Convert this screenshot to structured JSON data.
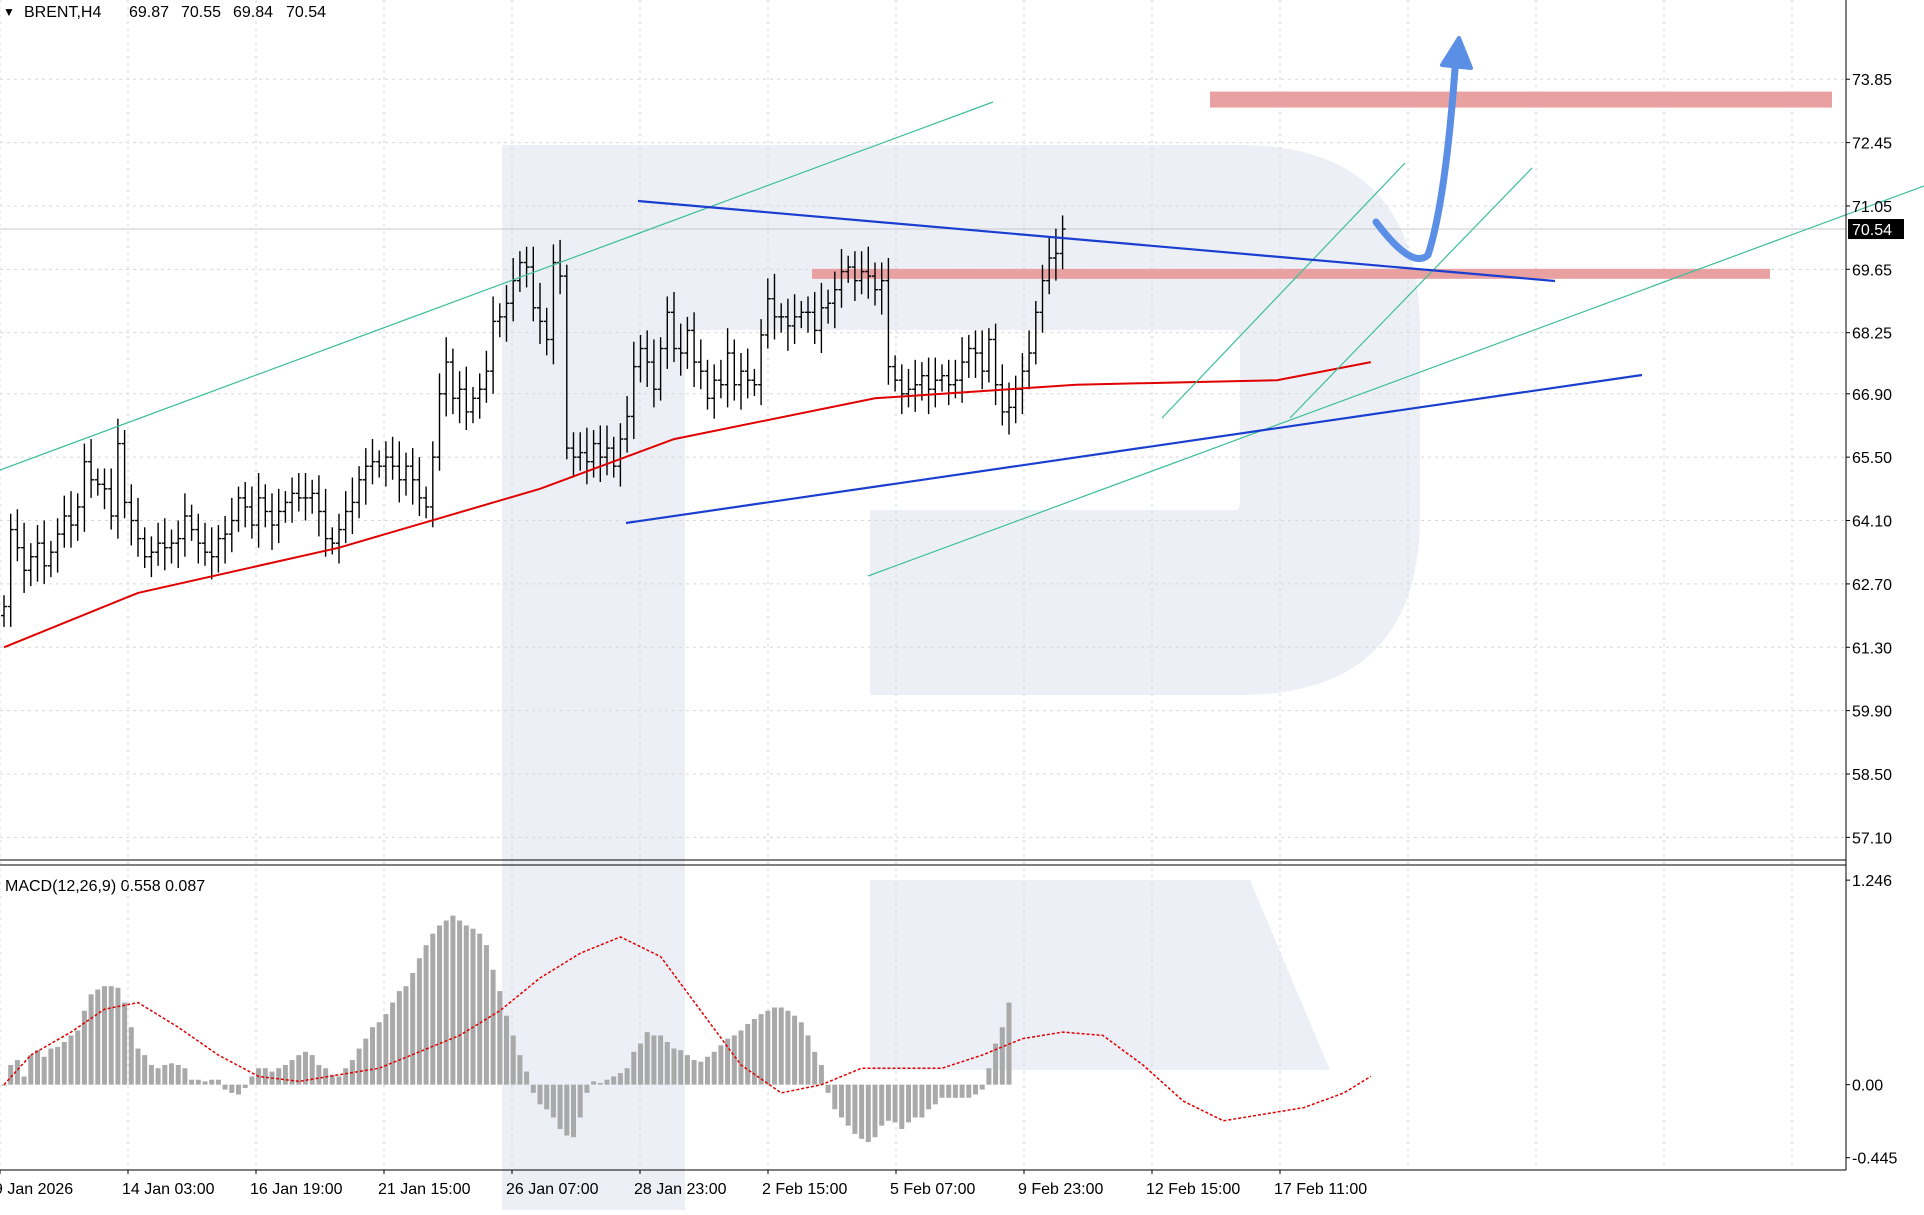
{
  "chart_data": [
    {
      "type": "candlestick",
      "header": {
        "arrow": "▼",
        "symbol": "BRENT,H4",
        "ohlc": [
          "69.87",
          "70.55",
          "69.84",
          "70.54"
        ]
      },
      "current_price": 70.54,
      "current_price_label": "70.54",
      "ylim": [
        56.6,
        75.6
      ],
      "y_ticks": [
        "73.85",
        "72.45",
        "71.05",
        "69.65",
        "68.25",
        "66.90",
        "65.50",
        "64.10",
        "62.70",
        "61.30",
        "59.90",
        "58.50",
        "57.10"
      ],
      "x_ticks": [
        "9 Jan 2026",
        "14 Jan 03:00",
        "16 Jan 19:00",
        "21 Jan 15:00",
        "26 Jan 07:00",
        "28 Jan 23:00",
        "2 Feb 15:00",
        "5 Feb 07:00",
        "9 Feb 23:00",
        "12 Feb 15:00",
        "17 Feb 11:00"
      ],
      "closes": [
        62.2,
        63.9,
        63.5,
        63.0,
        63.3,
        63.6,
        63.1,
        63.4,
        63.8,
        64.2,
        64.0,
        64.4,
        65.4,
        65.0,
        64.9,
        64.8,
        64.2,
        65.8,
        64.5,
        64.1,
        63.7,
        63.3,
        63.4,
        63.6,
        63.5,
        63.6,
        63.7,
        64.2,
        63.9,
        63.6,
        63.4,
        63.3,
        63.7,
        63.8,
        64.1,
        64.6,
        64.4,
        64.0,
        64.6,
        64.3,
        64.0,
        64.3,
        64.5,
        64.7,
        64.6,
        64.6,
        64.7,
        64.3,
        63.7,
        63.6,
        63.9,
        64.3,
        64.5,
        65.0,
        65.3,
        65.4,
        65.3,
        65.5,
        65.3,
        65.0,
        65.3,
        65.0,
        64.6,
        64.4,
        65.5,
        66.9,
        67.6,
        66.8,
        67.0,
        66.5,
        66.8,
        67.0,
        67.4,
        68.5,
        68.6,
        68.9,
        69.4,
        69.8,
        69.7,
        68.8,
        68.5,
        68.1,
        69.8,
        69.5,
        65.7,
        65.5,
        65.6,
        65.4,
        65.8,
        65.5,
        65.7,
        65.3,
        65.9,
        66.4,
        67.5,
        67.9,
        67.6,
        67.0,
        67.9,
        68.7,
        67.9,
        67.8,
        68.3,
        67.6,
        67.4,
        66.8,
        67.2,
        67.1,
        67.8,
        67.1,
        67.4,
        67.2,
        67.1,
        68.2,
        69.0,
        68.6,
        68.6,
        68.4,
        68.6,
        68.7,
        68.7,
        68.3,
        68.8,
        68.9,
        69.2,
        69.6,
        69.7,
        69.4,
        69.6,
        69.5,
        69.2,
        69.4,
        67.5,
        67.2,
        66.9,
        67.0,
        67.1,
        67.3,
        67.0,
        67.2,
        67.3,
        67.1,
        67.2,
        67.6,
        67.9,
        67.8,
        67.4,
        68.1,
        67.1,
        66.5,
        66.6,
        67.0,
        67.4,
        67.8,
        68.7,
        69.4,
        69.9,
        70.0,
        70.54
      ],
      "macd_title": "MACD(12,26,9) 0.558 0.087",
      "macd_ylim": [
        -0.52,
        1.32
      ],
      "macd_ticks": [
        "1.246",
        "0.00",
        "-0.445"
      ],
      "macd_histogram": [
        0.0,
        0.12,
        0.15,
        0.05,
        0.18,
        0.21,
        0.17,
        0.22,
        0.23,
        0.26,
        0.3,
        0.33,
        0.45,
        0.55,
        0.58,
        0.6,
        0.6,
        0.59,
        0.5,
        0.35,
        0.22,
        0.18,
        0.12,
        0.1,
        0.12,
        0.13,
        0.12,
        0.1,
        0.03,
        0.03,
        0.02,
        0.03,
        0.03,
        -0.03,
        -0.05,
        -0.06,
        -0.02,
        0.05,
        0.1,
        0.1,
        0.08,
        0.1,
        0.12,
        0.15,
        0.18,
        0.2,
        0.18,
        0.12,
        0.1,
        0.06,
        0.05,
        0.1,
        0.15,
        0.22,
        0.28,
        0.35,
        0.38,
        0.43,
        0.5,
        0.57,
        0.6,
        0.68,
        0.77,
        0.85,
        0.92,
        0.97,
        1.0,
        1.03,
        1.0,
        0.97,
        0.95,
        0.92,
        0.85,
        0.7,
        0.57,
        0.42,
        0.3,
        0.18,
        0.08,
        -0.05,
        -0.12,
        -0.15,
        -0.2,
        -0.27,
        -0.31,
        -0.32,
        -0.2,
        -0.05,
        0.02,
        0.01,
        0.03,
        0.05,
        0.07,
        0.1,
        0.2,
        0.25,
        0.32,
        0.3,
        0.3,
        0.26,
        0.22,
        0.21,
        0.18,
        0.15,
        0.14,
        0.17,
        0.2,
        0.24,
        0.28,
        0.3,
        0.33,
        0.37,
        0.4,
        0.43,
        0.45,
        0.47,
        0.47,
        0.45,
        0.42,
        0.38,
        0.3,
        0.2,
        0.12,
        -0.05,
        -0.15,
        -0.2,
        -0.25,
        -0.3,
        -0.33,
        -0.35,
        -0.32,
        -0.25,
        -0.22,
        -0.23,
        -0.27,
        -0.23,
        -0.2,
        -0.2,
        -0.15,
        -0.12,
        -0.08,
        -0.08,
        -0.08,
        -0.08,
        -0.08,
        -0.06,
        -0.03,
        0.1,
        0.25,
        0.35,
        0.5
      ],
      "macd_signal_points": [
        [
          0,
          0.0
        ],
        [
          4,
          0.18
        ],
        [
          10,
          0.32
        ],
        [
          15,
          0.46
        ],
        [
          20,
          0.5
        ],
        [
          26,
          0.35
        ],
        [
          32,
          0.18
        ],
        [
          38,
          0.05
        ],
        [
          44,
          0.02
        ],
        [
          50,
          0.06
        ],
        [
          56,
          0.1
        ],
        [
          62,
          0.2
        ],
        [
          68,
          0.3
        ],
        [
          74,
          0.45
        ],
        [
          80,
          0.65
        ],
        [
          86,
          0.8
        ],
        [
          92,
          0.9
        ],
        [
          98,
          0.78
        ],
        [
          104,
          0.45
        ],
        [
          110,
          0.12
        ],
        [
          116,
          -0.05
        ],
        [
          122,
          0.0
        ],
        [
          128,
          0.1
        ],
        [
          134,
          0.1
        ],
        [
          140,
          0.1
        ],
        [
          146,
          0.18
        ],
        [
          152,
          0.28
        ],
        [
          158,
          0.32
        ],
        [
          164,
          0.3
        ],
        [
          170,
          0.12
        ],
        [
          176,
          -0.1
        ],
        [
          182,
          -0.22
        ],
        [
          188,
          -0.18
        ],
        [
          194,
          -0.14
        ],
        [
          200,
          -0.05
        ],
        [
          204,
          0.05
        ]
      ],
      "ma_red_points": [
        [
          0,
          61.3
        ],
        [
          20,
          62.5
        ],
        [
          50,
          63.5
        ],
        [
          80,
          64.8
        ],
        [
          100,
          65.9
        ],
        [
          130,
          66.8
        ],
        [
          160,
          67.1
        ],
        [
          190,
          67.2
        ],
        [
          204,
          67.6
        ]
      ]
    }
  ]
}
